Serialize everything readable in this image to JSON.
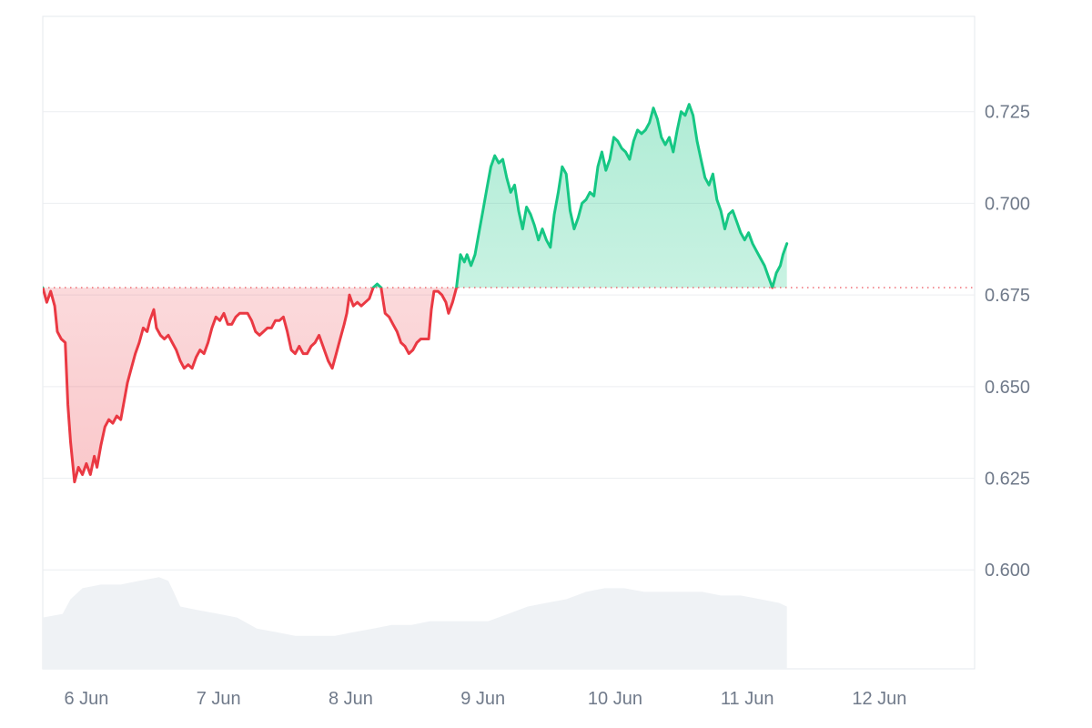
{
  "chart_data": {
    "type": "line",
    "title": "",
    "xlabel": "",
    "ylabel": "",
    "x_ticks": [
      "6 Jun",
      "7 Jun",
      "8 Jun",
      "9 Jun",
      "10 Jun",
      "11 Jun",
      "12 Jun"
    ],
    "y_ticks": [
      "0.600",
      "0.625",
      "0.650",
      "0.675",
      "0.700",
      "0.725"
    ],
    "x_range": [
      5.67,
      12.72
    ],
    "ylim": [
      0.573,
      0.751
    ],
    "baseline": 0.677,
    "grid": true,
    "legend": "none",
    "colors": {
      "above": "#16c784",
      "below": "#ea3943",
      "fill_above": "#16c784",
      "fill_below": "#ea3943",
      "volume": "#eff2f5",
      "grid": "#eceef1",
      "baseline": "#ea3943",
      "tick": "#707a8a"
    },
    "series": [
      {
        "values": [
          [
            5.67,
            0.677
          ],
          [
            5.7,
            0.673
          ],
          [
            5.73,
            0.676
          ],
          [
            5.76,
            0.672
          ],
          [
            5.78,
            0.665
          ],
          [
            5.81,
            0.663
          ],
          [
            5.84,
            0.662
          ],
          [
            5.86,
            0.645
          ],
          [
            5.88,
            0.635
          ],
          [
            5.91,
            0.624
          ],
          [
            5.94,
            0.628
          ],
          [
            5.97,
            0.626
          ],
          [
            6.0,
            0.629
          ],
          [
            6.03,
            0.626
          ],
          [
            6.06,
            0.631
          ],
          [
            6.08,
            0.628
          ],
          [
            6.11,
            0.634
          ],
          [
            6.14,
            0.639
          ],
          [
            6.17,
            0.641
          ],
          [
            6.2,
            0.64
          ],
          [
            6.23,
            0.642
          ],
          [
            6.26,
            0.641
          ],
          [
            6.29,
            0.647
          ],
          [
            6.31,
            0.651
          ],
          [
            6.34,
            0.655
          ],
          [
            6.37,
            0.659
          ],
          [
            6.4,
            0.662
          ],
          [
            6.43,
            0.666
          ],
          [
            6.46,
            0.665
          ],
          [
            6.48,
            0.668
          ],
          [
            6.51,
            0.671
          ],
          [
            6.53,
            0.666
          ],
          [
            6.56,
            0.664
          ],
          [
            6.59,
            0.663
          ],
          [
            6.62,
            0.664
          ],
          [
            6.65,
            0.662
          ],
          [
            6.68,
            0.66
          ],
          [
            6.71,
            0.657
          ],
          [
            6.74,
            0.655
          ],
          [
            6.77,
            0.656
          ],
          [
            6.8,
            0.655
          ],
          [
            6.83,
            0.658
          ],
          [
            6.86,
            0.66
          ],
          [
            6.89,
            0.659
          ],
          [
            6.92,
            0.662
          ],
          [
            6.95,
            0.666
          ],
          [
            6.98,
            0.669
          ],
          [
            7.01,
            0.668
          ],
          [
            7.04,
            0.67
          ],
          [
            7.07,
            0.667
          ],
          [
            7.1,
            0.667
          ],
          [
            7.13,
            0.669
          ],
          [
            7.16,
            0.67
          ],
          [
            7.19,
            0.67
          ],
          [
            7.22,
            0.67
          ],
          [
            7.25,
            0.668
          ],
          [
            7.28,
            0.665
          ],
          [
            7.31,
            0.664
          ],
          [
            7.34,
            0.665
          ],
          [
            7.37,
            0.666
          ],
          [
            7.4,
            0.666
          ],
          [
            7.43,
            0.668
          ],
          [
            7.46,
            0.668
          ],
          [
            7.49,
            0.669
          ],
          [
            7.52,
            0.665
          ],
          [
            7.55,
            0.66
          ],
          [
            7.58,
            0.659
          ],
          [
            7.61,
            0.661
          ],
          [
            7.64,
            0.659
          ],
          [
            7.67,
            0.659
          ],
          [
            7.7,
            0.661
          ],
          [
            7.73,
            0.662
          ],
          [
            7.76,
            0.664
          ],
          [
            7.78,
            0.662
          ],
          [
            7.8,
            0.66
          ],
          [
            7.83,
            0.657
          ],
          [
            7.86,
            0.655
          ],
          [
            7.89,
            0.659
          ],
          [
            7.92,
            0.663
          ],
          [
            7.95,
            0.667
          ],
          [
            7.97,
            0.67
          ],
          [
            7.99,
            0.675
          ],
          [
            8.02,
            0.672
          ],
          [
            8.05,
            0.673
          ],
          [
            8.08,
            0.672
          ],
          [
            8.11,
            0.673
          ],
          [
            8.14,
            0.674
          ],
          [
            8.17,
            0.677
          ],
          [
            8.2,
            0.678
          ],
          [
            8.23,
            0.677
          ],
          [
            8.26,
            0.67
          ],
          [
            8.29,
            0.669
          ],
          [
            8.32,
            0.667
          ],
          [
            8.35,
            0.665
          ],
          [
            8.38,
            0.662
          ],
          [
            8.41,
            0.661
          ],
          [
            8.44,
            0.659
          ],
          [
            8.47,
            0.66
          ],
          [
            8.5,
            0.662
          ],
          [
            8.53,
            0.663
          ],
          [
            8.56,
            0.663
          ],
          [
            8.59,
            0.663
          ],
          [
            8.61,
            0.671
          ],
          [
            8.63,
            0.676
          ],
          [
            8.66,
            0.676
          ],
          [
            8.69,
            0.675
          ],
          [
            8.72,
            0.673
          ],
          [
            8.74,
            0.67
          ],
          [
            8.77,
            0.673
          ],
          [
            8.8,
            0.677
          ],
          [
            8.83,
            0.686
          ],
          [
            8.86,
            0.684
          ],
          [
            8.88,
            0.686
          ],
          [
            8.91,
            0.683
          ],
          [
            8.94,
            0.686
          ],
          [
            8.97,
            0.692
          ],
          [
            9.0,
            0.698
          ],
          [
            9.03,
            0.704
          ],
          [
            9.06,
            0.71
          ],
          [
            9.09,
            0.713
          ],
          [
            9.12,
            0.711
          ],
          [
            9.15,
            0.712
          ],
          [
            9.18,
            0.707
          ],
          [
            9.21,
            0.703
          ],
          [
            9.24,
            0.705
          ],
          [
            9.27,
            0.698
          ],
          [
            9.3,
            0.693
          ],
          [
            9.33,
            0.699
          ],
          [
            9.36,
            0.697
          ],
          [
            9.39,
            0.694
          ],
          [
            9.42,
            0.69
          ],
          [
            9.45,
            0.693
          ],
          [
            9.48,
            0.69
          ],
          [
            9.51,
            0.688
          ],
          [
            9.54,
            0.697
          ],
          [
            9.57,
            0.703
          ],
          [
            9.6,
            0.71
          ],
          [
            9.63,
            0.708
          ],
          [
            9.66,
            0.698
          ],
          [
            9.69,
            0.693
          ],
          [
            9.72,
            0.696
          ],
          [
            9.75,
            0.7
          ],
          [
            9.78,
            0.701
          ],
          [
            9.81,
            0.703
          ],
          [
            9.84,
            0.702
          ],
          [
            9.87,
            0.71
          ],
          [
            9.9,
            0.714
          ],
          [
            9.93,
            0.709
          ],
          [
            9.96,
            0.712
          ],
          [
            9.99,
            0.718
          ],
          [
            10.02,
            0.717
          ],
          [
            10.05,
            0.715
          ],
          [
            10.08,
            0.714
          ],
          [
            10.11,
            0.712
          ],
          [
            10.14,
            0.717
          ],
          [
            10.17,
            0.72
          ],
          [
            10.2,
            0.719
          ],
          [
            10.23,
            0.72
          ],
          [
            10.26,
            0.722
          ],
          [
            10.29,
            0.726
          ],
          [
            10.32,
            0.723
          ],
          [
            10.35,
            0.718
          ],
          [
            10.38,
            0.716
          ],
          [
            10.41,
            0.718
          ],
          [
            10.44,
            0.714
          ],
          [
            10.47,
            0.72
          ],
          [
            10.5,
            0.725
          ],
          [
            10.53,
            0.724
          ],
          [
            10.56,
            0.727
          ],
          [
            10.59,
            0.724
          ],
          [
            10.62,
            0.717
          ],
          [
            10.65,
            0.712
          ],
          [
            10.68,
            0.707
          ],
          [
            10.71,
            0.705
          ],
          [
            10.74,
            0.708
          ],
          [
            10.77,
            0.701
          ],
          [
            10.8,
            0.698
          ],
          [
            10.83,
            0.693
          ],
          [
            10.86,
            0.697
          ],
          [
            10.89,
            0.698
          ],
          [
            10.92,
            0.695
          ],
          [
            10.95,
            0.692
          ],
          [
            10.98,
            0.69
          ],
          [
            11.01,
            0.692
          ],
          [
            11.04,
            0.689
          ],
          [
            11.07,
            0.687
          ],
          [
            11.1,
            0.685
          ],
          [
            11.13,
            0.683
          ],
          [
            11.16,
            0.68
          ],
          [
            11.19,
            0.677
          ],
          [
            11.22,
            0.681
          ],
          [
            11.25,
            0.683
          ],
          [
            11.27,
            0.686
          ],
          [
            11.3,
            0.689
          ]
        ]
      }
    ],
    "volume": [
      [
        5.67,
        0.587
      ],
      [
        5.82,
        0.588
      ],
      [
        5.88,
        0.592
      ],
      [
        5.97,
        0.595
      ],
      [
        6.11,
        0.596
      ],
      [
        6.26,
        0.596
      ],
      [
        6.4,
        0.597
      ],
      [
        6.55,
        0.598
      ],
      [
        6.62,
        0.597
      ],
      [
        6.66,
        0.594
      ],
      [
        6.71,
        0.59
      ],
      [
        6.85,
        0.589
      ],
      [
        7.0,
        0.588
      ],
      [
        7.14,
        0.587
      ],
      [
        7.29,
        0.584
      ],
      [
        7.44,
        0.583
      ],
      [
        7.58,
        0.582
      ],
      [
        7.73,
        0.582
      ],
      [
        7.88,
        0.582
      ],
      [
        8.02,
        0.583
      ],
      [
        8.17,
        0.584
      ],
      [
        8.31,
        0.585
      ],
      [
        8.46,
        0.585
      ],
      [
        8.6,
        0.586
      ],
      [
        8.75,
        0.586
      ],
      [
        8.9,
        0.586
      ],
      [
        9.04,
        0.586
      ],
      [
        9.19,
        0.588
      ],
      [
        9.34,
        0.59
      ],
      [
        9.48,
        0.591
      ],
      [
        9.63,
        0.592
      ],
      [
        9.78,
        0.594
      ],
      [
        9.92,
        0.595
      ],
      [
        10.07,
        0.595
      ],
      [
        10.22,
        0.594
      ],
      [
        10.36,
        0.594
      ],
      [
        10.51,
        0.594
      ],
      [
        10.66,
        0.594
      ],
      [
        10.8,
        0.593
      ],
      [
        10.95,
        0.593
      ],
      [
        11.1,
        0.592
      ],
      [
        11.24,
        0.591
      ],
      [
        11.3,
        0.59
      ]
    ]
  }
}
